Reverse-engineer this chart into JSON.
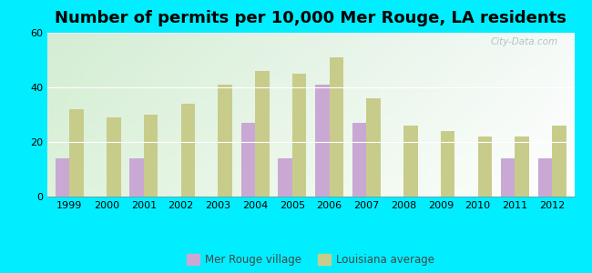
{
  "title": "Number of permits per 10,000 Mer Rouge, LA residents",
  "years": [
    1999,
    2000,
    2001,
    2002,
    2003,
    2004,
    2005,
    2006,
    2007,
    2008,
    2009,
    2010,
    2011,
    2012
  ],
  "mer_rouge": [
    14,
    0,
    14,
    0,
    0,
    27,
    14,
    41,
    27,
    0,
    0,
    0,
    14,
    14
  ],
  "louisiana": [
    32,
    29,
    30,
    34,
    41,
    46,
    45,
    51,
    36,
    26,
    24,
    22,
    22,
    26
  ],
  "mer_rouge_color": "#c9a8d4",
  "louisiana_color": "#c8cc8a",
  "outer_bg": "#00eeff",
  "plot_bg_top": "#d6edd6",
  "plot_bg_bottom": "#edfaed",
  "plot_bg_right": "#e8f8f8",
  "ylim": [
    0,
    60
  ],
  "yticks": [
    0,
    20,
    40,
    60
  ],
  "bar_width": 0.38,
  "legend_mer_rouge": "Mer Rouge village",
  "legend_louisiana": "Louisiana average",
  "title_fontsize": 13,
  "watermark": "City-Data.com"
}
